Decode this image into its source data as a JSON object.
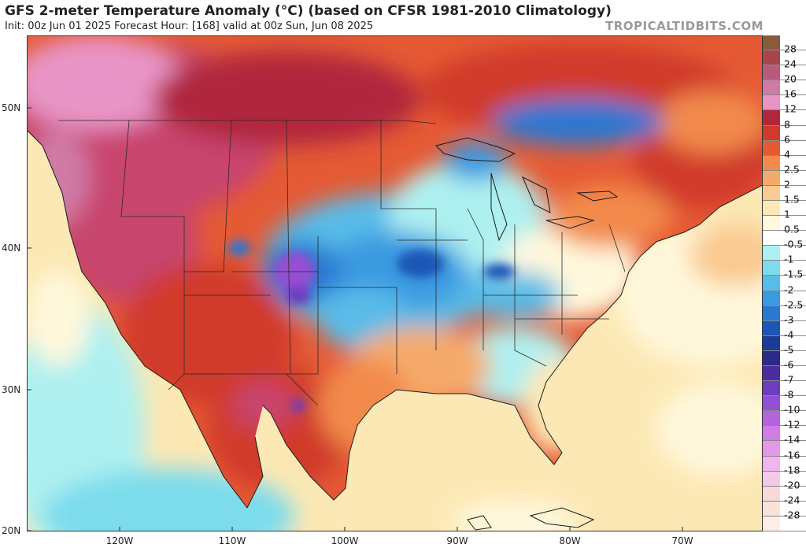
{
  "header": {
    "title": "GFS 2-meter Temperature Anomaly (°C) (based on CFSR 1981-2010 Climatology)",
    "subtitle": "Init: 00z Jun 01 2025   Forecast Hour: [168]   valid at 00z Sun, Jun 08 2025",
    "credit": "TROPICALTIDBITS.COM"
  },
  "map": {
    "lat_labels": [
      "50N",
      "40N",
      "30N",
      "20N"
    ],
    "lon_labels": [
      "120W",
      "110W",
      "100W",
      "90W",
      "80W",
      "70W"
    ],
    "legend_levels": [
      {
        "label": "28",
        "color": "#8a5a3c"
      },
      {
        "label": "24",
        "color": "#a8444e"
      },
      {
        "label": "20",
        "color": "#b85a7e"
      },
      {
        "label": "16",
        "color": "#d07aa6"
      },
      {
        "label": "12",
        "color": "#e894c6"
      },
      {
        "label": "8",
        "color": "#b0283c"
      },
      {
        "label": "6",
        "color": "#d03a2a"
      },
      {
        "label": "4",
        "color": "#e55a34"
      },
      {
        "label": "2.5",
        "color": "#f28a4c"
      },
      {
        "label": "2",
        "color": "#f5aa6a"
      },
      {
        "label": "1.5",
        "color": "#f9ca92"
      },
      {
        "label": "1",
        "color": "#fce8b4"
      },
      {
        "label": "0.5",
        "color": "#fff8dc"
      },
      {
        "label": "-0.5",
        "color": "#ffffff"
      },
      {
        "label": "-1",
        "color": "#aef0f0"
      },
      {
        "label": "-1.5",
        "color": "#7cdcec"
      },
      {
        "label": "-2",
        "color": "#58bce8"
      },
      {
        "label": "-2.5",
        "color": "#3a9ae0"
      },
      {
        "label": "-3",
        "color": "#2a78d2"
      },
      {
        "label": "-4",
        "color": "#1e56b6"
      },
      {
        "label": "-5",
        "color": "#1a3c98"
      },
      {
        "label": "-6",
        "color": "#2c2a88"
      },
      {
        "label": "-7",
        "color": "#4a2ea0"
      },
      {
        "label": "-8",
        "color": "#6e3cbe"
      },
      {
        "label": "-10",
        "color": "#9450d2"
      },
      {
        "label": "-12",
        "color": "#b464dc"
      },
      {
        "label": "-14",
        "color": "#d07ce4"
      },
      {
        "label": "-16",
        "color": "#e498ea"
      },
      {
        "label": "-18",
        "color": "#f0b4ee"
      },
      {
        "label": "-20",
        "color": "#f6c8e8"
      },
      {
        "label": "-24",
        "color": "#f8d8d8"
      },
      {
        "label": "-28",
        "color": "#fbe2d8"
      },
      {
        "label": "",
        "color": "#fdeee8"
      }
    ],
    "colors": {
      "ocean_warm": "#fce8b4",
      "ocean_cool": "#aef0f0",
      "hot": "#d03a2a",
      "very_hot": "#c8446e",
      "cold": "#3a9ae0",
      "very_cold": "#9450d2"
    }
  }
}
